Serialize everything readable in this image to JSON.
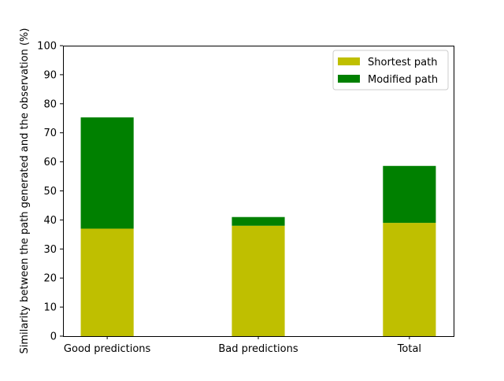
{
  "chart_data": {
    "type": "bar",
    "stacked": true,
    "categories": [
      "Good predictions",
      "Bad predictions",
      "Total"
    ],
    "series": [
      {
        "name": "Shortest path",
        "color": "#bfbf00",
        "values": [
          37,
          38,
          39
        ]
      },
      {
        "name": "Modified path",
        "color": "#008000",
        "values": [
          38.3,
          3,
          19.6
        ]
      }
    ],
    "ylabel": "Similarity between the path generated and the observation (%)",
    "ylim": [
      0,
      100
    ],
    "yticks": [
      0,
      10,
      20,
      30,
      40,
      50,
      60,
      70,
      80,
      90,
      100
    ],
    "grid": false,
    "legend_position": "top-right"
  }
}
